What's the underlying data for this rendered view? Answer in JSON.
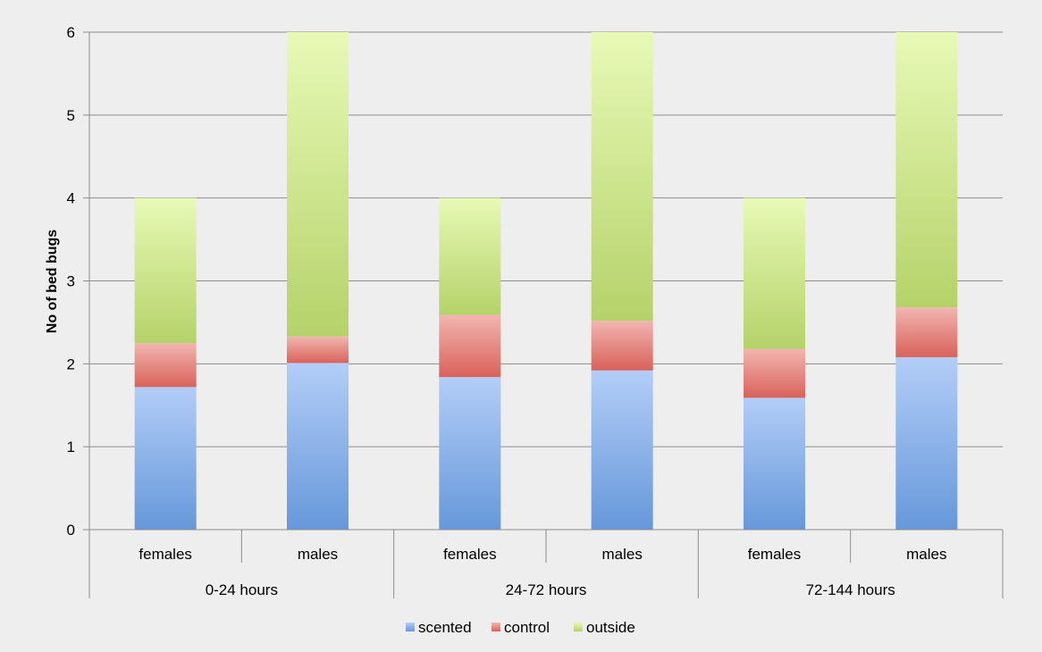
{
  "chart_data": {
    "type": "bar",
    "stacked": true,
    "groups": [
      "0-24 hours",
      "24-72 hours",
      "72-144 hours"
    ],
    "categories": [
      "females",
      "males",
      "females",
      "males",
      "females",
      "males"
    ],
    "series": [
      {
        "name": "scented",
        "values": [
          1.72,
          2.01,
          1.84,
          1.92,
          1.59,
          2.08
        ],
        "color_top": "#b3cdf7",
        "color_bottom": "#6698da"
      },
      {
        "name": "control",
        "values": [
          0.53,
          0.32,
          0.75,
          0.6,
          0.59,
          0.6
        ],
        "color_top": "#f2b5b0",
        "color_bottom": "#d9625b"
      },
      {
        "name": "outside",
        "values": [
          1.75,
          3.67,
          1.41,
          3.48,
          1.82,
          3.32
        ],
        "color_top": "#e8f9b6",
        "color_bottom": "#b5d26a"
      }
    ],
    "title": "",
    "xlabel": "",
    "ylabel": "No of bed bugs",
    "ylim": [
      0,
      6
    ],
    "yticks": [
      "0",
      "1",
      "2",
      "3",
      "4",
      "5",
      "6"
    ],
    "grid": true,
    "legend_position": "bottom"
  }
}
